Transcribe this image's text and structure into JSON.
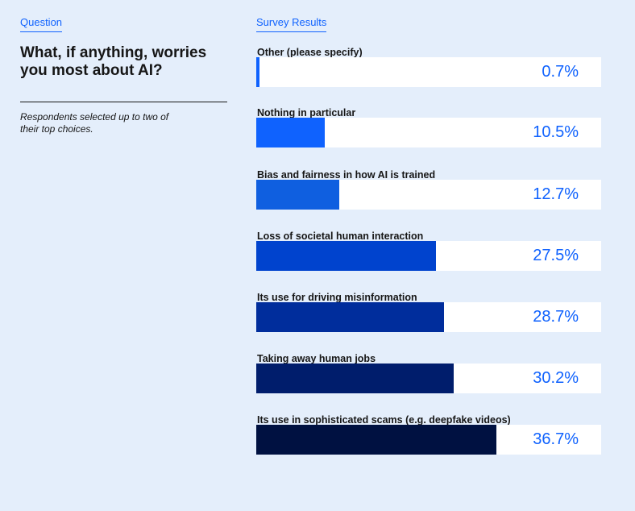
{
  "question_section": {
    "label": "Question",
    "question": "What, if anything, worries you most about AI?",
    "note": "Respondents selected up to two of their top choices."
  },
  "results_section": {
    "label": "Survey Results"
  },
  "chart_data": {
    "type": "bar",
    "orientation": "horizontal",
    "title": "",
    "xlim": [
      0,
      100
    ],
    "unit": "%",
    "categories": [
      "Other (please specify)",
      "Nothing in particular",
      "Bias and fairness in how AI is trained",
      "Loss of societal human interaction",
      "Its use for driving misinformation",
      "Taking away human jobs",
      "Its use in sophisticated scams (e.g. deepfake videos)"
    ],
    "values": [
      0.7,
      10.5,
      12.7,
      27.5,
      28.7,
      30.2,
      36.7
    ],
    "value_labels": [
      "0.7%",
      "10.5%",
      "12.7%",
      "27.5%",
      "28.7%",
      "30.2%",
      "36.7%"
    ],
    "colors": [
      "#0f62fe",
      "#0f62fe",
      "#0f5fe0",
      "#0043ce",
      "#002d9c",
      "#001d6c",
      "#001141"
    ],
    "value_color": "#0f62fe"
  }
}
